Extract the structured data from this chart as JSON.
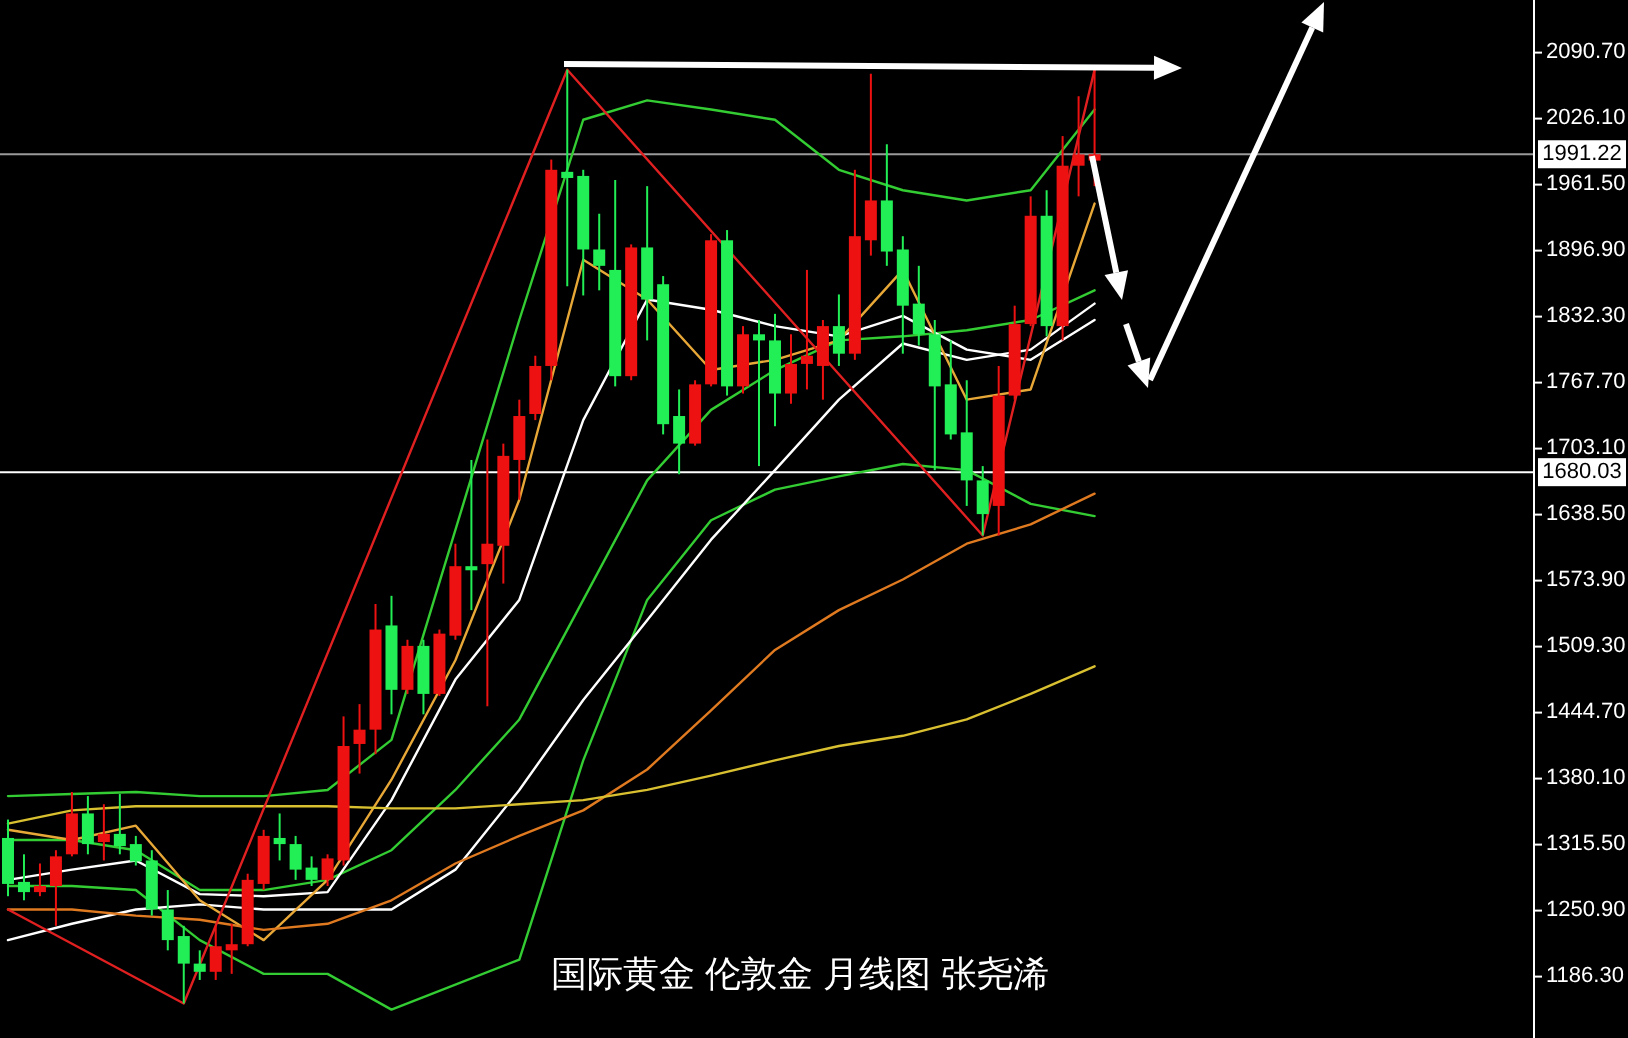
{
  "chart_data": {
    "type": "candlestick",
    "title": "国际黄金 伦敦金 月线图 张尧浠",
    "categories": [
      null,
      null,
      null,
      null,
      null,
      null,
      null,
      null,
      null,
      null,
      null,
      null,
      null,
      null,
      null,
      null,
      null,
      null,
      null,
      null,
      null,
      null,
      null,
      null,
      null,
      null,
      null,
      null,
      null,
      null,
      null,
      null,
      null,
      null,
      null,
      null,
      null,
      null,
      null,
      null,
      null,
      null,
      null,
      null,
      null,
      null,
      null,
      null,
      null,
      null,
      null,
      null,
      null,
      null,
      null,
      null,
      null,
      null,
      null,
      null,
      null,
      null,
      null,
      null,
      null,
      null,
      null,
      null,
      null,
      null,
      null,
      null,
      null,
      null,
      null,
      null,
      null,
      null,
      null,
      null,
      null,
      null,
      null,
      null,
      null,
      null,
      null,
      null,
      null,
      null,
      null,
      null,
      null,
      null,
      null,
      null
    ],
    "ohlc": [
      [
        1322,
        1340,
        1265,
        1277
      ],
      [
        1279,
        1306,
        1261,
        1269
      ],
      [
        1269,
        1297,
        1265,
        1275
      ],
      [
        1275,
        1310,
        1236,
        1304
      ],
      [
        1306,
        1367,
        1304,
        1346
      ],
      [
        1346,
        1363,
        1306,
        1316
      ],
      [
        1318,
        1355,
        1300,
        1326
      ],
      [
        1326,
        1365,
        1306,
        1314
      ],
      [
        1316,
        1324,
        1295,
        1299
      ],
      [
        1300,
        1310,
        1246,
        1252
      ],
      [
        1252,
        1271,
        1212,
        1222
      ],
      [
        1226,
        1236,
        1160,
        1199
      ],
      [
        1199,
        1212,
        1183,
        1191
      ],
      [
        1191,
        1236,
        1183,
        1216
      ],
      [
        1212,
        1238,
        1189,
        1218
      ],
      [
        1218,
        1287,
        1216,
        1281
      ],
      [
        1277,
        1330,
        1271,
        1324
      ],
      [
        1322,
        1346,
        1300,
        1316
      ],
      [
        1316,
        1324,
        1281,
        1291
      ],
      [
        1293,
        1304,
        1275,
        1281
      ],
      [
        1281,
        1306,
        1275,
        1302
      ],
      [
        1300,
        1441,
        1295,
        1412
      ],
      [
        1414,
        1453,
        1385,
        1428
      ],
      [
        1428,
        1551,
        1404,
        1526
      ],
      [
        1530,
        1559,
        1443,
        1467
      ],
      [
        1467,
        1516,
        1463,
        1510
      ],
      [
        1510,
        1516,
        1443,
        1463
      ],
      [
        1463,
        1526,
        1461,
        1522
      ],
      [
        1520,
        1610,
        1516,
        1588
      ],
      [
        1588,
        1692,
        1545,
        1584
      ],
      [
        1590,
        1712,
        1451,
        1610
      ],
      [
        1608,
        1708,
        1571,
        1696
      ],
      [
        1692,
        1751,
        1653,
        1735
      ],
      [
        1737,
        1794,
        1731,
        1784
      ],
      [
        1784,
        1986,
        1770,
        1976
      ],
      [
        1974,
        2074,
        1862,
        1968
      ],
      [
        1970,
        1976,
        1853,
        1898
      ],
      [
        1898,
        1933,
        1858,
        1882
      ],
      [
        1878,
        1966,
        1764,
        1774
      ],
      [
        1774,
        1903,
        1770,
        1900
      ],
      [
        1900,
        1960,
        1809,
        1849
      ],
      [
        1864,
        1872,
        1717,
        1727
      ],
      [
        1735,
        1761,
        1678,
        1708
      ],
      [
        1708,
        1770,
        1706,
        1766
      ],
      [
        1766,
        1913,
        1764,
        1907
      ],
      [
        1907,
        1917,
        1755,
        1764
      ],
      [
        1764,
        1823,
        1757,
        1815
      ],
      [
        1815,
        1829,
        1686,
        1809
      ],
      [
        1809,
        1835,
        1725,
        1757
      ],
      [
        1757,
        1815,
        1747,
        1786
      ],
      [
        1786,
        1878,
        1761,
        1794
      ],
      [
        1784,
        1829,
        1751,
        1823
      ],
      [
        1823,
        1854,
        1784,
        1796
      ],
      [
        1796,
        1976,
        1790,
        1911
      ],
      [
        1907,
        2070,
        1892,
        1946
      ],
      [
        1946,
        2001,
        1882,
        1896
      ],
      [
        1898,
        1911,
        1796,
        1843
      ],
      [
        1845,
        1882,
        1804,
        1815
      ],
      [
        1815,
        1829,
        1682,
        1764
      ],
      [
        1766,
        1809,
        1712,
        1717
      ],
      [
        1719,
        1770,
        1647,
        1672
      ],
      [
        1672,
        1686,
        1618,
        1639
      ],
      [
        1647,
        1784,
        1618,
        1755
      ],
      [
        1755,
        1843,
        1751,
        1825
      ],
      [
        1825,
        1950,
        1823,
        1931
      ],
      [
        1931,
        1956,
        1813,
        1823
      ],
      [
        1823,
        2009,
        1809,
        1980
      ],
      [
        1980,
        2048,
        1950,
        1991
      ],
      [
        1985,
        2075,
        1960,
        1991.22
      ],
      null,
      null,
      null,
      null,
      null,
      null,
      null,
      null,
      null,
      null,
      null,
      null,
      null,
      null,
      null,
      null,
      null,
      null,
      null,
      null,
      null,
      null,
      null,
      null,
      null,
      null,
      null
    ],
    "colors": [
      "#22ee55",
      "#22ee55",
      "#ee1111",
      "#ee1111",
      "#ee1111",
      "#22ee55",
      "#ee1111",
      "#22ee55",
      "#22ee55",
      "#22ee55",
      "#22ee55",
      "#22ee55",
      "#22ee55",
      "#ee1111",
      "#ee1111",
      "#ee1111",
      "#ee1111",
      "#22ee55",
      "#22ee55",
      "#22ee55",
      "#ee1111",
      "#ee1111",
      "#ee1111",
      "#ee1111",
      "#22ee55",
      "#ee1111",
      "#22ee55",
      "#ee1111",
      "#ee1111",
      "#22ee55",
      "#ee1111",
      "#ee1111",
      "#ee1111",
      "#ee1111",
      "#ee1111",
      "#22ee55",
      "#22ee55",
      "#22ee55",
      "#22ee55",
      "#ee1111",
      "#22ee55",
      "#22ee55",
      "#22ee55",
      "#ee1111",
      "#ee1111",
      "#22ee55",
      "#ee1111",
      "#22ee55",
      "#22ee55",
      "#ee1111",
      "#ee1111",
      "#ee1111",
      "#22ee55",
      "#ee1111",
      "#ee1111",
      "#22ee55",
      "#22ee55",
      "#22ee55",
      "#22ee55",
      "#22ee55",
      "#22ee55",
      "#22ee55",
      "#ee1111",
      "#ee1111",
      "#ee1111",
      "#22ee55",
      "#ee1111",
      "#ee1111",
      "#ee1111",
      null,
      null,
      null,
      null,
      null,
      null,
      null,
      null,
      null,
      null,
      null,
      null,
      null,
      null,
      null,
      null,
      null,
      null,
      null,
      null,
      null,
      null,
      null,
      null,
      null,
      null,
      null
    ],
    "series": [
      {
        "type": "line",
        "color": "#33cc33",
        "values": [
          1363,
          null,
          null,
          null,
          1365,
          null,
          null,
          null,
          1367,
          null,
          null,
          null,
          1363,
          null,
          null,
          null,
          1363,
          null,
          null,
          null,
          1369,
          null,
          null,
          null,
          1418,
          null,
          null,
          null,
          null,
          null,
          null,
          null,
          1829,
          null,
          null,
          null,
          2025,
          null,
          null,
          null,
          2044,
          null,
          null,
          null,
          2035,
          null,
          null,
          null,
          2025,
          null,
          null,
          null,
          1976,
          null,
          null,
          null,
          1956,
          null,
          null,
          null,
          1946,
          null,
          null,
          null,
          1956,
          null,
          null,
          null,
          2035,
          null,
          null,
          null,
          null,
          null,
          null,
          null,
          null,
          null,
          null,
          null,
          null,
          null,
          null,
          null,
          null,
          null,
          null,
          null,
          null,
          null,
          null,
          null,
          null,
          null,
          null,
          null
        ]
      },
      {
        "type": "line",
        "color": "#33cc33",
        "values": [
          1320,
          null,
          null,
          null,
          1320,
          null,
          null,
          null,
          1310,
          null,
          null,
          null,
          1271,
          null,
          null,
          null,
          1271,
          null,
          null,
          null,
          1281,
          null,
          null,
          null,
          1310,
          null,
          null,
          null,
          1369,
          null,
          null,
          null,
          1438,
          null,
          null,
          null,
          1555,
          null,
          null,
          null,
          1672,
          null,
          null,
          null,
          1741,
          null,
          null,
          null,
          1780,
          null,
          null,
          null,
          1809,
          null,
          null,
          null,
          1813,
          null,
          null,
          null,
          1819,
          null,
          null,
          null,
          1829,
          null,
          null,
          null,
          1858,
          null,
          null,
          null,
          null,
          null,
          null,
          null,
          null,
          null,
          null,
          null,
          null,
          null,
          null,
          null,
          null,
          null,
          null,
          null,
          null,
          null,
          null,
          null,
          null,
          null,
          null,
          null
        ]
      },
      {
        "type": "line",
        "color": "#33cc33",
        "values": [
          1275,
          null,
          null,
          null,
          1275,
          null,
          null,
          null,
          1271,
          null,
          null,
          null,
          1222,
          null,
          null,
          null,
          1189,
          null,
          null,
          null,
          1189,
          null,
          null,
          null,
          1154,
          null,
          null,
          null,
          null,
          null,
          null,
          null,
          1203,
          null,
          null,
          null,
          1398,
          null,
          null,
          null,
          1555,
          null,
          null,
          null,
          1633,
          null,
          null,
          null,
          1663,
          null,
          null,
          null,
          1676,
          null,
          null,
          null,
          1688,
          null,
          null,
          null,
          1682,
          null,
          null,
          null,
          1649,
          null,
          null,
          null,
          1637,
          null,
          null,
          null,
          null,
          null,
          null,
          null,
          null,
          null,
          null,
          null,
          null,
          null,
          null,
          null,
          null,
          null,
          null,
          null,
          null,
          null,
          null,
          null,
          null,
          null,
          null,
          null
        ]
      },
      {
        "type": "line",
        "color": "#ffffff",
        "values": [
          1281,
          null,
          null,
          null,
          1291,
          null,
          null,
          null,
          1300,
          null,
          null,
          null,
          1267,
          null,
          null,
          null,
          1265,
          null,
          null,
          null,
          1269,
          null,
          null,
          null,
          1359,
          null,
          null,
          null,
          1477,
          null,
          null,
          null,
          1555,
          null,
          null,
          null,
          1731,
          null,
          null,
          null,
          1849,
          null,
          null,
          null,
          1839,
          null,
          null,
          null,
          1823,
          null,
          null,
          null,
          1813,
          null,
          null,
          null,
          1833,
          null,
          null,
          null,
          1800,
          null,
          null,
          null,
          1790,
          null,
          null,
          null,
          1829,
          null,
          null,
          null,
          null,
          null,
          null,
          null,
          null,
          null,
          null,
          null,
          null,
          null,
          null,
          null,
          null,
          null,
          null,
          null,
          null,
          null,
          null,
          null,
          null,
          null,
          null,
          null
        ]
      },
      {
        "type": "line",
        "color": "#ffffff",
        "values": [
          1222,
          null,
          null,
          null,
          1238,
          null,
          null,
          null,
          1252,
          null,
          null,
          null,
          1257,
          null,
          null,
          null,
          1252,
          null,
          null,
          null,
          1252,
          null,
          null,
          null,
          1252,
          null,
          null,
          null,
          1291,
          null,
          null,
          null,
          1369,
          null,
          null,
          null,
          1457,
          null,
          null,
          null,
          1535,
          null,
          null,
          null,
          1614,
          null,
          null,
          null,
          1682,
          null,
          null,
          null,
          1751,
          null,
          null,
          null,
          1806,
          null,
          null,
          null,
          1790,
          null,
          null,
          null,
          1800,
          null,
          null,
          null,
          1845,
          null,
          null,
          null,
          null,
          null,
          null,
          null,
          null,
          null,
          null,
          null,
          null,
          null,
          null,
          null,
          null,
          null,
          null,
          null,
          null,
          null,
          null,
          null,
          null,
          null,
          null,
          null
        ]
      },
      {
        "type": "line",
        "color": "#e8a838",
        "values": [
          1330,
          null,
          null,
          null,
          1320,
          null,
          null,
          null,
          1334,
          null,
          null,
          null,
          1261,
          null,
          null,
          null,
          1222,
          null,
          null,
          null,
          1281,
          null,
          null,
          null,
          1379,
          null,
          null,
          null,
          1496,
          null,
          null,
          null,
          1653,
          null,
          null,
          null,
          1888,
          null,
          null,
          null,
          1849,
          null,
          null,
          null,
          1780,
          null,
          null,
          null,
          1790,
          null,
          null,
          null,
          1809,
          null,
          null,
          null,
          1878,
          null,
          null,
          null,
          1751,
          null,
          null,
          null,
          1761,
          null,
          null,
          null,
          1943,
          null,
          null,
          null,
          null,
          null,
          null,
          null,
          null,
          null,
          null,
          null,
          null,
          null,
          null,
          null,
          null,
          null,
          null,
          null,
          null,
          null,
          null,
          null,
          null,
          null,
          null,
          null
        ]
      },
      {
        "type": "line",
        "color": "#e07a20",
        "values": [
          1252,
          null,
          null,
          null,
          1252,
          null,
          null,
          null,
          1246,
          null,
          null,
          null,
          1242,
          null,
          null,
          null,
          1232,
          null,
          null,
          null,
          1238,
          null,
          null,
          null,
          1261,
          null,
          null,
          null,
          1297,
          null,
          null,
          null,
          1324,
          null,
          null,
          null,
          1349,
          null,
          null,
          null,
          1389,
          null,
          null,
          null,
          1447,
          null,
          null,
          null,
          1506,
          null,
          null,
          null,
          1545,
          null,
          null,
          null,
          1575,
          null,
          null,
          null,
          1610,
          null,
          null,
          null,
          1629,
          null,
          null,
          null,
          1659,
          null,
          null,
          null,
          null,
          null,
          null,
          null,
          null,
          null,
          null,
          null,
          null,
          null,
          null,
          null,
          null,
          null,
          null,
          null,
          null,
          null,
          null,
          null,
          null,
          null,
          null,
          null
        ]
      },
      {
        "type": "line",
        "color": "#d8c030",
        "values": [
          1336,
          null,
          null,
          null,
          1349,
          null,
          null,
          null,
          1353,
          null,
          null,
          null,
          1353,
          null,
          null,
          null,
          1353,
          null,
          null,
          null,
          1353,
          null,
          null,
          null,
          1351,
          null,
          null,
          null,
          1351,
          null,
          null,
          null,
          1355,
          null,
          null,
          null,
          1359,
          null,
          null,
          null,
          1369,
          null,
          null,
          null,
          1383,
          null,
          null,
          null,
          1398,
          null,
          null,
          null,
          1412,
          null,
          null,
          null,
          1422,
          null,
          null,
          null,
          1438,
          null,
          null,
          null,
          1463,
          null,
          null,
          null,
          1490,
          null,
          null,
          null,
          null,
          null,
          null,
          null,
          null,
          null,
          null,
          null,
          null,
          null,
          null,
          null,
          null,
          null,
          null,
          null,
          null,
          null,
          null,
          null,
          null,
          null,
          null,
          null
        ]
      },
      {
        "type": "line",
        "color": "#e02020",
        "values": [
          1252,
          null,
          null,
          null,
          null,
          null,
          null,
          null,
          null,
          null,
          null,
          1160,
          null,
          null,
          null,
          null,
          null,
          null,
          null,
          null,
          null,
          null,
          null,
          null,
          null,
          null,
          null,
          null,
          null,
          null,
          null,
          null,
          null,
          null,
          null,
          2074,
          null,
          null,
          null,
          null,
          null,
          null,
          null,
          null,
          null,
          null,
          null,
          null,
          null,
          null,
          null,
          null,
          null,
          null,
          null,
          null,
          null,
          null,
          null,
          null,
          null,
          1618,
          null,
          null,
          null,
          null,
          null,
          null,
          2074,
          null,
          null,
          null,
          null,
          null,
          null,
          null,
          null,
          null,
          null,
          null,
          null,
          null,
          null,
          null,
          null,
          null,
          null,
          null,
          null,
          null,
          null,
          null,
          null,
          null,
          null,
          null
        ]
      }
    ],
    "ylim": [
      1126.2,
      2142.2
    ],
    "yticks": [
      {
        "value": 2090.7,
        "label": "2090.70"
      },
      {
        "value": 2026.1,
        "label": "2026.10"
      },
      {
        "value": 1961.5,
        "label": "1961.50"
      },
      {
        "value": 1896.9,
        "label": "1896.90"
      },
      {
        "value": 1832.3,
        "label": "1832.30"
      },
      {
        "value": 1767.7,
        "label": "1767.70"
      },
      {
        "value": 1703.1,
        "label": "1703.10"
      },
      {
        "value": 1638.5,
        "label": "1638.50"
      },
      {
        "value": 1573.9,
        "label": "1573.90"
      },
      {
        "value": 1509.3,
        "label": "1509.30"
      },
      {
        "value": 1444.7,
        "label": "1444.70"
      },
      {
        "value": 1380.1,
        "label": "1380.10"
      },
      {
        "value": 1315.5,
        "label": "1315.50"
      },
      {
        "value": 1250.9,
        "label": "1250.90"
      },
      {
        "value": 1186.3,
        "label": "1186.30"
      }
    ],
    "tick_labels": "y",
    "ref_lines": [
      {
        "axis": "y",
        "value": 1991.22,
        "label": "1991.22",
        "color": "#9a9a9a"
      },
      {
        "axis": "y",
        "value": 1680.03,
        "label": "1680.03",
        "color": "#ffffff"
      }
    ]
  }
}
